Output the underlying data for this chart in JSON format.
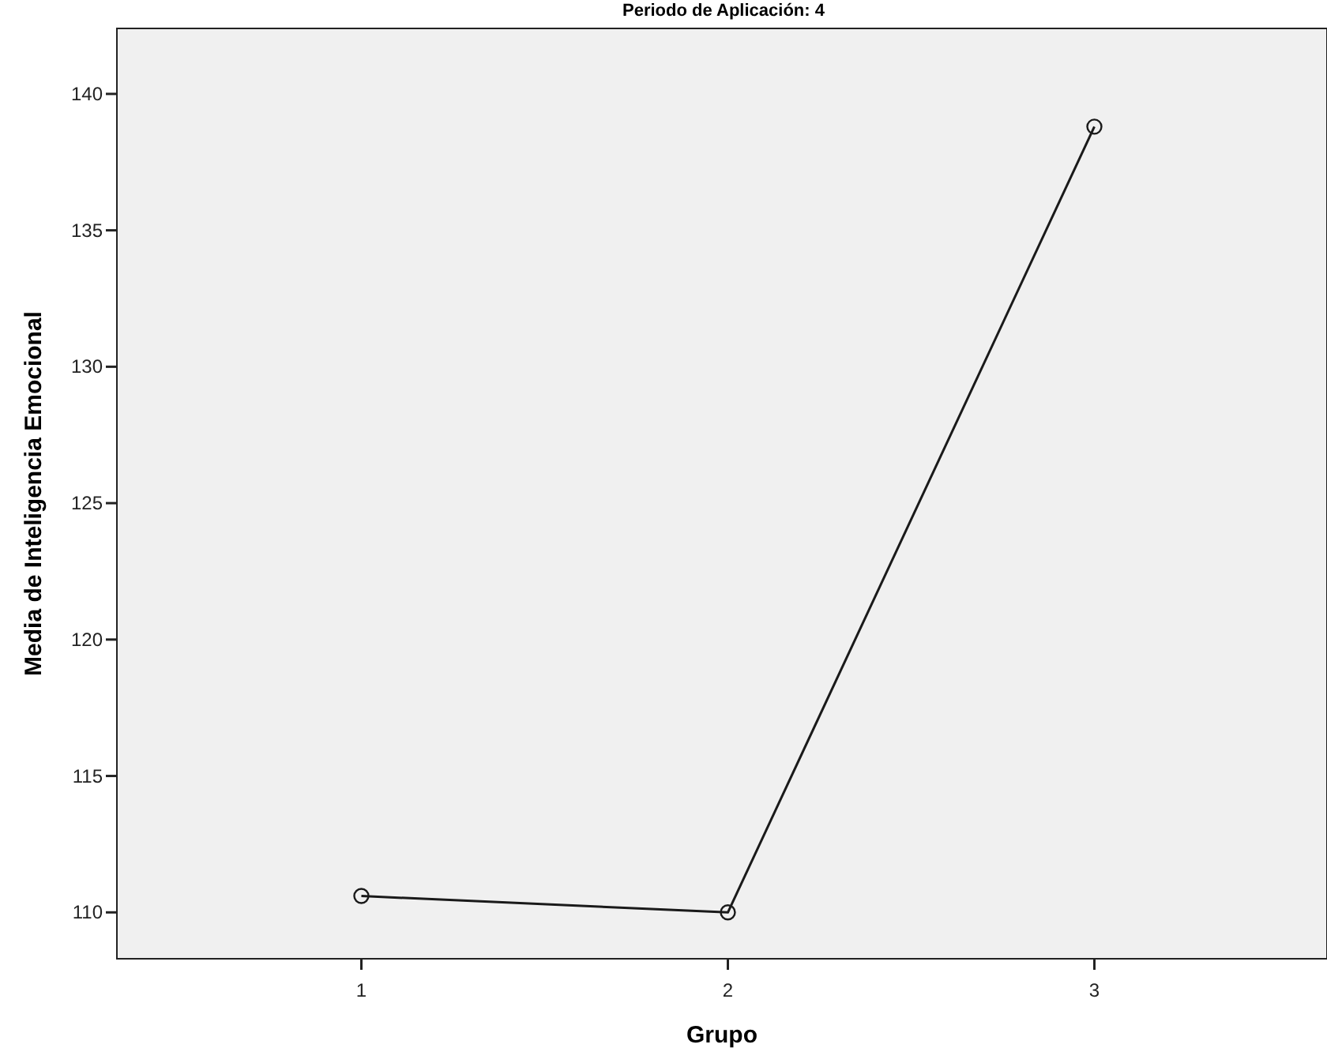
{
  "chart_data": {
    "type": "line",
    "title": "Periodo de Aplicación: 4",
    "xlabel": "Grupo",
    "ylabel": "Media de Inteligencia Emocional",
    "categories": [
      "1",
      "2",
      "3"
    ],
    "series": [
      {
        "color": "#1a1a1a",
        "values": [
          110.6,
          110.0,
          138.8
        ]
      }
    ],
    "ylim": [
      108.3,
      142.4
    ],
    "yticks": [
      110,
      115,
      120,
      125,
      130,
      135,
      140
    ],
    "grid": false,
    "marker": "circle",
    "line_style": "solid"
  }
}
